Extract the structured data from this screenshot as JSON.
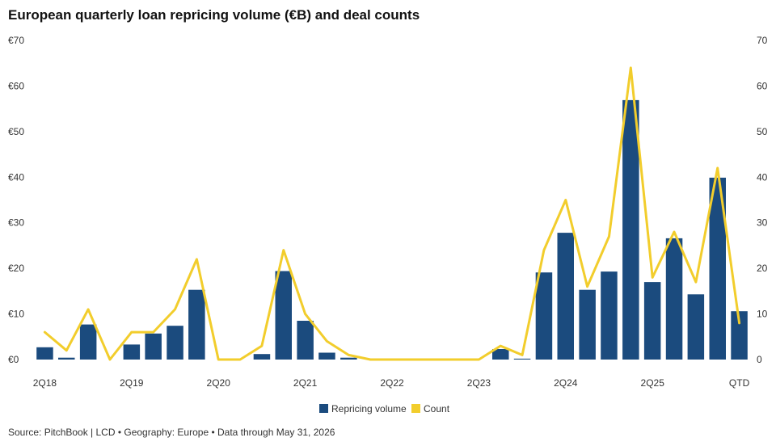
{
  "title": "European quarterly loan repricing volume (€B) and deal counts",
  "source": "Source: PitchBook | LCD • Geography: Europe • Data through May 31, 2026",
  "chart_data": {
    "type": "bar",
    "title": "European quarterly loan repricing volume (€B) and deal counts",
    "categories": [
      "2Q18",
      "3Q18",
      "4Q18",
      "1Q19",
      "2Q19",
      "3Q19",
      "4Q19",
      "1Q20",
      "2Q20",
      "3Q20",
      "4Q20",
      "1Q21",
      "2Q21",
      "3Q21",
      "4Q21",
      "1Q22",
      "2Q22",
      "3Q22",
      "4Q22",
      "1Q23",
      "2Q23",
      "3Q23",
      "4Q23",
      "1Q24",
      "2Q24",
      "3Q24",
      "4Q24",
      "1Q25",
      "2Q25",
      "3Q25",
      "4Q25",
      "1Q26",
      "QTD"
    ],
    "x_tick_labels": [
      "2Q18",
      "2Q19",
      "2Q20",
      "2Q21",
      "2Q22",
      "2Q23",
      "2Q24",
      "2Q25",
      "QTD"
    ],
    "series": [
      {
        "name": "Repricing volume",
        "type": "bar",
        "axis": "left",
        "color": "#1b4b7e",
        "values": [
          2.7,
          0.4,
          7.7,
          0,
          3.3,
          5.7,
          7.4,
          15.3,
          0,
          0,
          1.2,
          19.4,
          8.5,
          1.5,
          0.4,
          0,
          0,
          0,
          0,
          0,
          0,
          2.3,
          0.2,
          19.1,
          27.8,
          15.3,
          19.3,
          56.9,
          17,
          26.6,
          14.3,
          39.9,
          10.6
        ]
      },
      {
        "name": "Count",
        "type": "line",
        "axis": "right",
        "color": "#f2cd2c",
        "values": [
          6,
          2,
          11,
          0,
          6,
          6,
          11,
          22,
          0,
          0,
          3,
          24,
          10,
          4,
          1,
          0,
          0,
          0,
          0,
          0,
          0,
          3,
          1,
          24,
          35,
          16,
          27,
          64,
          18,
          28,
          17,
          42,
          8
        ]
      }
    ],
    "y_left": {
      "ticks": [
        "€0",
        "€10",
        "€20",
        "€30",
        "€40",
        "€50",
        "€60",
        "€70"
      ],
      "lim": [
        0,
        70
      ]
    },
    "y_right": {
      "ticks": [
        "0",
        "10",
        "20",
        "30",
        "40",
        "50",
        "60",
        "70"
      ],
      "lim": [
        0,
        70
      ]
    },
    "grid": false,
    "legend": "bottom-center",
    "legend_entries": [
      "Repricing volume",
      "Count"
    ]
  }
}
